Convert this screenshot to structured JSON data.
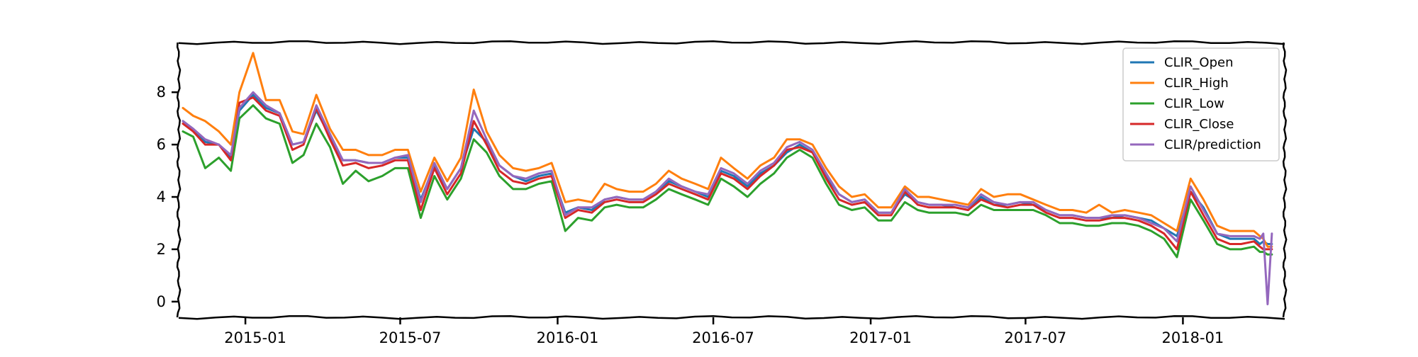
{
  "chart_data": {
    "type": "line",
    "title": "",
    "xlabel": "",
    "ylabel": "",
    "x_range": [
      "2014-10-15",
      "2018-04-30"
    ],
    "ylim": [
      -0.6,
      9.9
    ],
    "grid": false,
    "legend_position": "top-right",
    "x_ticks": [
      {
        "value": "2015-01-01",
        "label": "2015-01"
      },
      {
        "value": "2015-07-01",
        "label": "2015-07"
      },
      {
        "value": "2016-01-01",
        "label": "2016-01"
      },
      {
        "value": "2016-07-01",
        "label": "2016-07"
      },
      {
        "value": "2017-01-01",
        "label": "2017-01"
      },
      {
        "value": "2017-07-01",
        "label": "2017-07"
      },
      {
        "value": "2018-01-01",
        "label": "2018-01"
      }
    ],
    "y_ticks": [
      {
        "value": 0,
        "label": "0"
      },
      {
        "value": 2,
        "label": "2"
      },
      {
        "value": 4,
        "label": "4"
      },
      {
        "value": 6,
        "label": "6"
      },
      {
        "value": 8,
        "label": "8"
      }
    ],
    "dates": [
      "2014-10-20",
      "2014-11-01",
      "2014-11-15",
      "2014-12-01",
      "2014-12-15",
      "2014-12-25",
      "2015-01-10",
      "2015-01-25",
      "2015-02-10",
      "2015-02-25",
      "2015-03-10",
      "2015-03-25",
      "2015-04-10",
      "2015-04-25",
      "2015-05-10",
      "2015-05-25",
      "2015-06-10",
      "2015-06-25",
      "2015-07-10",
      "2015-07-25",
      "2015-08-10",
      "2015-08-25",
      "2015-09-10",
      "2015-09-25",
      "2015-10-10",
      "2015-10-25",
      "2015-11-10",
      "2015-11-25",
      "2015-12-10",
      "2015-12-25",
      "2016-01-10",
      "2016-01-25",
      "2016-02-10",
      "2016-02-25",
      "2016-03-10",
      "2016-03-25",
      "2016-04-10",
      "2016-04-25",
      "2016-05-10",
      "2016-05-25",
      "2016-06-10",
      "2016-06-25",
      "2016-07-10",
      "2016-07-25",
      "2016-08-10",
      "2016-08-25",
      "2016-09-10",
      "2016-09-25",
      "2016-10-10",
      "2016-10-25",
      "2016-11-10",
      "2016-11-25",
      "2016-12-10",
      "2016-12-25",
      "2017-01-10",
      "2017-01-25",
      "2017-02-10",
      "2017-02-25",
      "2017-03-10",
      "2017-03-25",
      "2017-04-10",
      "2017-04-25",
      "2017-05-10",
      "2017-05-25",
      "2017-06-10",
      "2017-06-25",
      "2017-07-10",
      "2017-07-25",
      "2017-08-10",
      "2017-08-25",
      "2017-09-10",
      "2017-09-25",
      "2017-10-10",
      "2017-10-25",
      "2017-11-10",
      "2017-11-25",
      "2017-12-10",
      "2017-12-25",
      "2018-01-10",
      "2018-01-25",
      "2018-02-10",
      "2018-02-25",
      "2018-03-10",
      "2018-03-25",
      "2018-04-01",
      "2018-04-05",
      "2018-04-10",
      "2018-04-15"
    ],
    "series": [
      {
        "name": "CLIR_Open",
        "color": "#1f77b4",
        "values": [
          6.9,
          6.6,
          6.1,
          6.0,
          5.5,
          7.3,
          7.9,
          7.4,
          7.2,
          6.0,
          6.1,
          7.3,
          6.3,
          5.4,
          5.4,
          5.3,
          5.3,
          5.5,
          5.5,
          3.9,
          5.2,
          4.3,
          5.1,
          6.6,
          6.1,
          5.2,
          4.8,
          4.6,
          4.8,
          4.9,
          3.4,
          3.6,
          3.5,
          3.9,
          4.0,
          3.9,
          3.9,
          4.2,
          4.6,
          4.4,
          4.2,
          4.0,
          5.0,
          4.8,
          4.4,
          4.9,
          5.2,
          5.7,
          6.0,
          5.7,
          4.8,
          4.1,
          3.8,
          3.9,
          3.4,
          3.4,
          4.1,
          3.8,
          3.7,
          3.7,
          3.6,
          3.5,
          4.0,
          3.7,
          3.7,
          3.8,
          3.7,
          3.5,
          3.3,
          3.3,
          3.2,
          3.2,
          3.2,
          3.3,
          3.2,
          3.1,
          2.8,
          2.5,
          4.2,
          3.6,
          2.6,
          2.4,
          2.4,
          2.4,
          2.2,
          2.3,
          2.2,
          2.2
        ]
      },
      {
        "name": "CLIR_High",
        "color": "#ff7f0e",
        "values": [
          7.4,
          7.1,
          6.9,
          6.5,
          6.0,
          8.0,
          9.5,
          7.7,
          7.7,
          6.5,
          6.4,
          7.9,
          6.6,
          5.8,
          5.8,
          5.6,
          5.6,
          5.8,
          5.8,
          4.2,
          5.5,
          4.6,
          5.5,
          8.1,
          6.5,
          5.6,
          5.1,
          5.0,
          5.1,
          5.3,
          3.8,
          3.9,
          3.8,
          4.5,
          4.3,
          4.2,
          4.2,
          4.5,
          5.0,
          4.7,
          4.5,
          4.3,
          5.5,
          5.1,
          4.7,
          5.2,
          5.5,
          6.2,
          6.2,
          6.0,
          5.1,
          4.4,
          4.0,
          4.1,
          3.6,
          3.6,
          4.4,
          4.0,
          4.0,
          3.9,
          3.8,
          3.7,
          4.3,
          4.0,
          4.1,
          4.1,
          3.9,
          3.7,
          3.5,
          3.5,
          3.4,
          3.7,
          3.4,
          3.5,
          3.4,
          3.3,
          3.0,
          2.7,
          4.7,
          3.9,
          2.9,
          2.7,
          2.7,
          2.7,
          2.5,
          2.4,
          2.1,
          2.1
        ]
      },
      {
        "name": "CLIR_Low",
        "color": "#2ca02c",
        "values": [
          6.5,
          6.3,
          5.1,
          5.5,
          5.0,
          7.0,
          7.5,
          7.0,
          6.8,
          5.3,
          5.6,
          6.8,
          5.9,
          4.5,
          5.0,
          4.6,
          4.8,
          5.1,
          5.1,
          3.2,
          4.8,
          3.9,
          4.7,
          6.2,
          5.7,
          4.8,
          4.3,
          4.3,
          4.5,
          4.6,
          2.7,
          3.2,
          3.1,
          3.6,
          3.7,
          3.6,
          3.6,
          3.9,
          4.3,
          4.1,
          3.9,
          3.7,
          4.7,
          4.4,
          4.0,
          4.5,
          4.9,
          5.5,
          5.8,
          5.5,
          4.5,
          3.7,
          3.5,
          3.6,
          3.1,
          3.1,
          3.8,
          3.5,
          3.4,
          3.4,
          3.4,
          3.3,
          3.7,
          3.5,
          3.5,
          3.5,
          3.5,
          3.3,
          3.0,
          3.0,
          2.9,
          2.9,
          3.0,
          3.0,
          2.9,
          2.7,
          2.4,
          1.7,
          3.9,
          3.1,
          2.2,
          2.0,
          2.0,
          2.1,
          1.9,
          1.9,
          1.8,
          1.8
        ]
      },
      {
        "name": "CLIR_Close",
        "color": "#d62728",
        "values": [
          6.8,
          6.5,
          6.0,
          6.0,
          5.4,
          7.6,
          7.8,
          7.3,
          7.1,
          5.8,
          6.0,
          7.4,
          6.2,
          5.2,
          5.3,
          5.1,
          5.2,
          5.4,
          5.4,
          3.5,
          5.1,
          4.1,
          4.9,
          6.9,
          6.0,
          5.0,
          4.6,
          4.5,
          4.7,
          4.8,
          3.2,
          3.5,
          3.4,
          3.8,
          3.9,
          3.8,
          3.8,
          4.1,
          4.5,
          4.3,
          4.1,
          3.9,
          4.9,
          4.7,
          4.3,
          4.8,
          5.2,
          5.8,
          5.9,
          5.7,
          4.7,
          3.9,
          3.7,
          3.8,
          3.3,
          3.3,
          4.2,
          3.7,
          3.6,
          3.6,
          3.6,
          3.5,
          3.9,
          3.7,
          3.6,
          3.7,
          3.7,
          3.4,
          3.2,
          3.2,
          3.1,
          3.1,
          3.2,
          3.2,
          3.1,
          2.9,
          2.6,
          2.0,
          4.2,
          3.3,
          2.4,
          2.2,
          2.2,
          2.3,
          2.1,
          2.0,
          2.0,
          2.0
        ]
      },
      {
        "name": "CLIR/prediction",
        "color": "#9467bd",
        "values": [
          6.9,
          6.6,
          6.2,
          6.0,
          5.6,
          7.4,
          8.0,
          7.5,
          7.2,
          6.0,
          6.1,
          7.5,
          6.4,
          5.4,
          5.4,
          5.3,
          5.3,
          5.5,
          5.6,
          3.8,
          5.3,
          4.3,
          5.1,
          7.3,
          6.2,
          5.2,
          4.8,
          4.7,
          4.9,
          5.0,
          3.3,
          3.6,
          3.6,
          3.9,
          4.0,
          3.9,
          3.9,
          4.2,
          4.7,
          4.4,
          4.2,
          4.1,
          5.1,
          4.9,
          4.5,
          5.0,
          5.3,
          5.9,
          6.1,
          5.8,
          4.9,
          4.1,
          3.8,
          3.9,
          3.4,
          3.4,
          4.3,
          3.8,
          3.7,
          3.7,
          3.7,
          3.6,
          4.1,
          3.8,
          3.7,
          3.8,
          3.8,
          3.5,
          3.3,
          3.3,
          3.2,
          3.2,
          3.3,
          3.3,
          3.2,
          3.0,
          2.8,
          2.3,
          4.4,
          3.5,
          2.6,
          2.5,
          2.5,
          2.5,
          2.4,
          2.6,
          -0.1,
          2.6
        ]
      }
    ]
  }
}
